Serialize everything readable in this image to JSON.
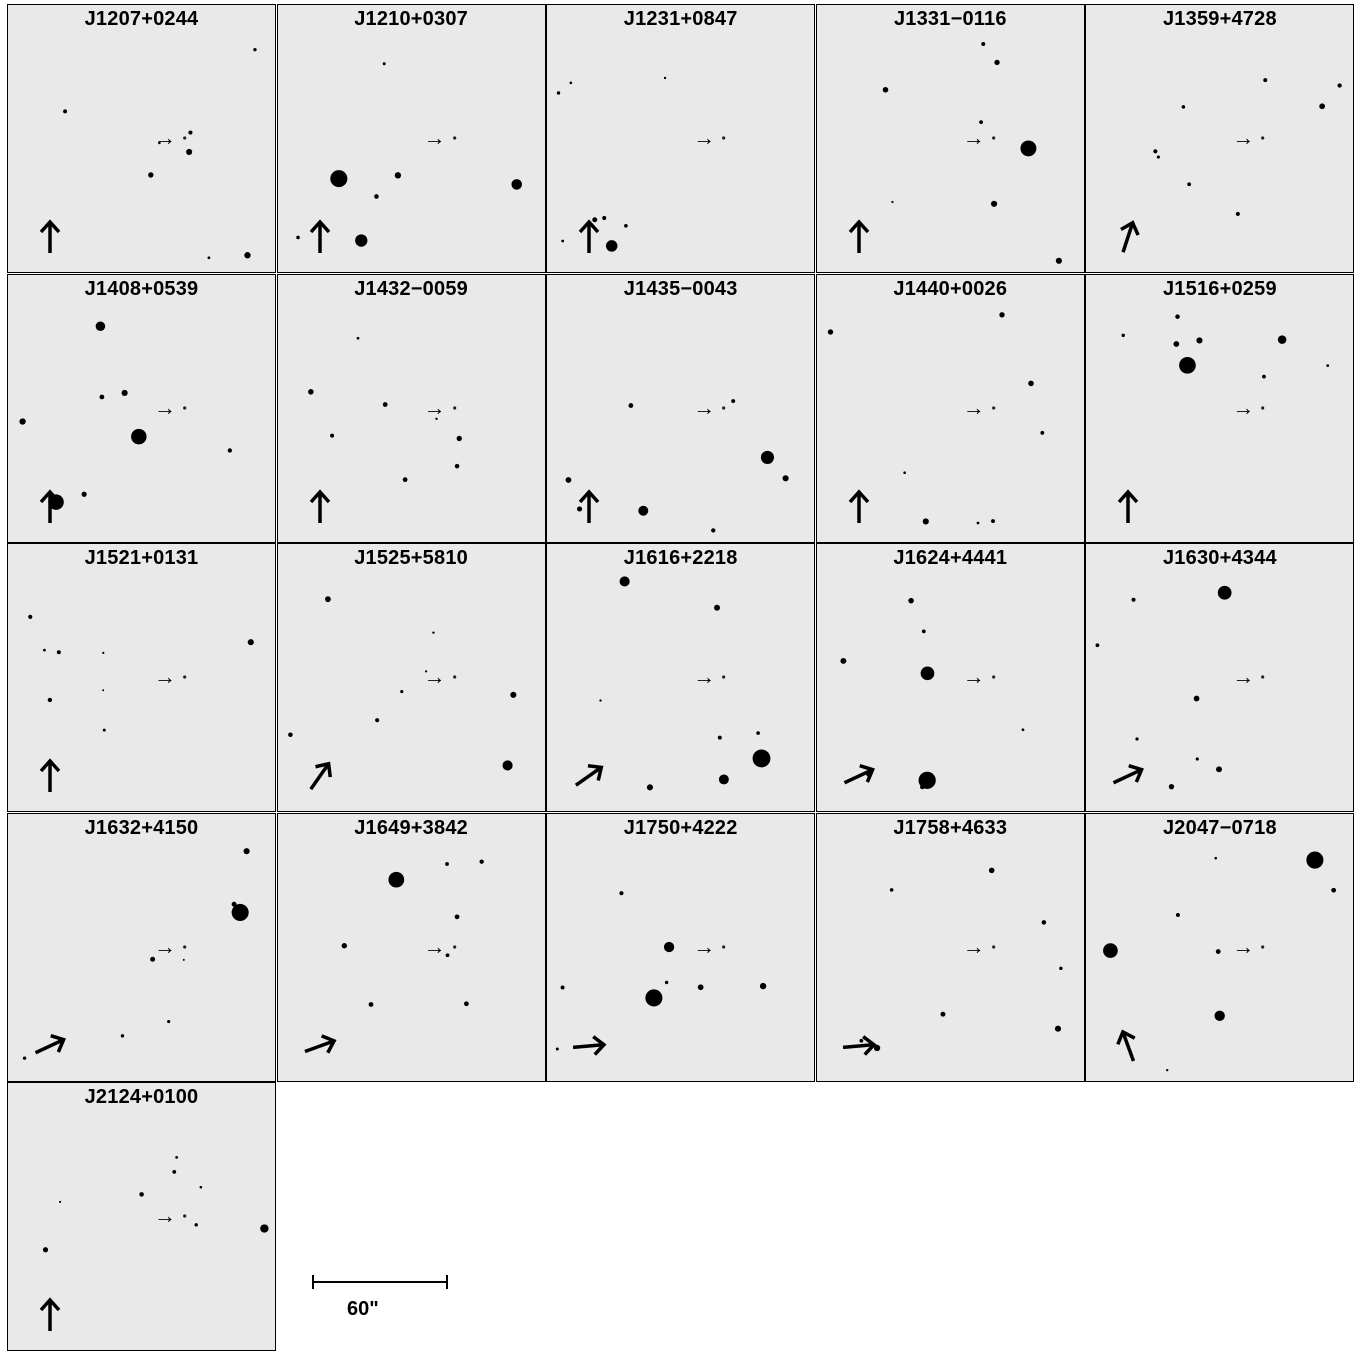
{
  "panels": [
    {
      "name": "J1207+0244",
      "north_angle_deg": 0
    },
    {
      "name": "J1210+0307",
      "north_angle_deg": 0
    },
    {
      "name": "J1231+0847",
      "north_angle_deg": 0
    },
    {
      "name": "J1331−0116",
      "north_angle_deg": 0
    },
    {
      "name": "J1359+4728",
      "north_angle_deg": 18
    },
    {
      "name": "J1408+0539",
      "north_angle_deg": 0
    },
    {
      "name": "J1432−0059",
      "north_angle_deg": 0
    },
    {
      "name": "J1435−0043",
      "north_angle_deg": 0
    },
    {
      "name": "J1440+0026",
      "north_angle_deg": 0
    },
    {
      "name": "J1516+0259",
      "north_angle_deg": 0
    },
    {
      "name": "J1521+0131",
      "north_angle_deg": 0
    },
    {
      "name": "J1525+5810",
      "north_angle_deg": 35
    },
    {
      "name": "J1616+2218",
      "north_angle_deg": 55
    },
    {
      "name": "J1624+4441",
      "north_angle_deg": 65
    },
    {
      "name": "J1630+4344",
      "north_angle_deg": 65
    },
    {
      "name": "J1632+4150",
      "north_angle_deg": 65
    },
    {
      "name": "J1649+3842",
      "north_angle_deg": 70
    },
    {
      "name": "J1750+4222",
      "north_angle_deg": 85
    },
    {
      "name": "J1758+4633",
      "north_angle_deg": 85
    },
    {
      "name": "J2047−0718",
      "north_angle_deg": -20
    },
    {
      "name": "J2124+0100",
      "north_angle_deg": 0
    }
  ],
  "scale_bar": {
    "label": "60\""
  },
  "colors": {
    "background": "#e9e9e9",
    "star": "#000000",
    "border": "#000000"
  }
}
